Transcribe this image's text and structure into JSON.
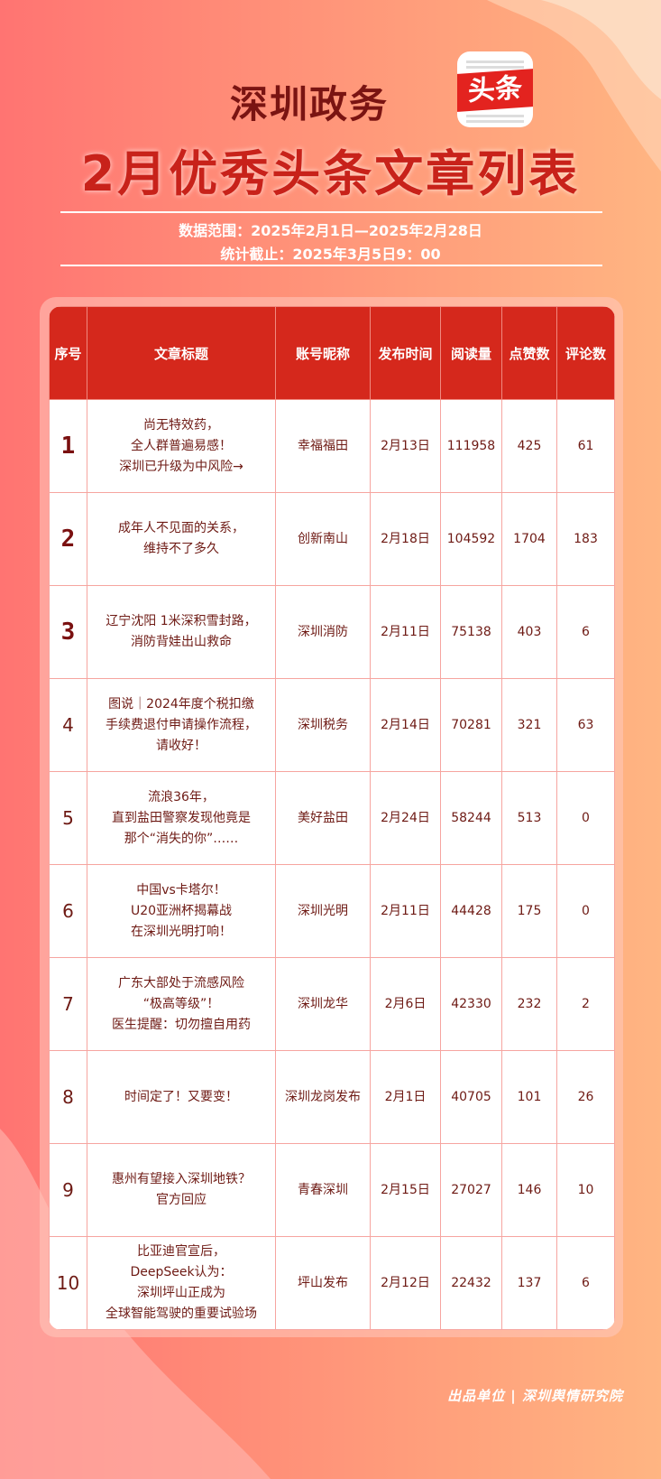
{
  "header": {
    "brand": "深圳政务",
    "logo_text": "头条",
    "title": "2月优秀头条文章列表",
    "range": "数据范围：2025年2月1日—2025年2月28日",
    "cutoff": "统计截止：2025年3月5日9：00"
  },
  "table": {
    "columns": [
      "序号",
      "文章标题",
      "账号昵称",
      "发布时间",
      "阅读量",
      "点赞数",
      "评论数"
    ],
    "rows": [
      {
        "rank": "1",
        "title": "尚无特效药，\n全人群普遍易感！\n深圳已升级为中风险→",
        "account": "幸福福田",
        "date": "2月13日",
        "reads": "111958",
        "likes": "425",
        "comments": "61"
      },
      {
        "rank": "2",
        "title": "成年人不见面的关系，\n维持不了多久",
        "account": "创新南山",
        "date": "2月18日",
        "reads": "104592",
        "likes": "1704",
        "comments": "183"
      },
      {
        "rank": "3",
        "title": "辽宁沈阳 1米深积雪封路，\n消防背娃出山救命",
        "account": "深圳消防",
        "date": "2月11日",
        "reads": "75138",
        "likes": "403",
        "comments": "6"
      },
      {
        "rank": "4",
        "title": "图说｜2024年度个税扣缴\n手续费退付申请操作流程，\n请收好！",
        "account": "深圳税务",
        "date": "2月14日",
        "reads": "70281",
        "likes": "321",
        "comments": "63"
      },
      {
        "rank": "5",
        "title": "流浪36年，\n直到盐田警察发现他竟是\n那个“消失的你”……",
        "account": "美好盐田",
        "date": "2月24日",
        "reads": "58244",
        "likes": "513",
        "comments": "0"
      },
      {
        "rank": "6",
        "title": "中国vs卡塔尔！\nU20亚洲杯揭幕战\n在深圳光明打响！",
        "account": "深圳光明",
        "date": "2月11日",
        "reads": "44428",
        "likes": "175",
        "comments": "0"
      },
      {
        "rank": "7",
        "title": "广东大部处于流感风险\n“极高等级”！\n医生提醒：切勿擅自用药",
        "account": "深圳龙华",
        "date": "2月6日",
        "reads": "42330",
        "likes": "232",
        "comments": "2"
      },
      {
        "rank": "8",
        "title": "时间定了！又要变！",
        "account": "深圳龙岗发布",
        "date": "2月1日",
        "reads": "40705",
        "likes": "101",
        "comments": "26"
      },
      {
        "rank": "9",
        "title": "惠州有望接入深圳地铁？\n官方回应",
        "account": "青春深圳",
        "date": "2月15日",
        "reads": "27027",
        "likes": "146",
        "comments": "10"
      },
      {
        "rank": "10",
        "title": "比亚迪官宣后，\nDeepSeek认为：\n深圳坪山正成为\n全球智能驾驶的重要试验场",
        "account": "坪山发布",
        "date": "2月12日",
        "reads": "22432",
        "likes": "137",
        "comments": "6"
      }
    ]
  },
  "footer": "出品单位 | 深圳舆情研究院",
  "colors": {
    "header_bg": "#d5281c",
    "text": "#6e1a14",
    "accent": "#c8221a"
  }
}
